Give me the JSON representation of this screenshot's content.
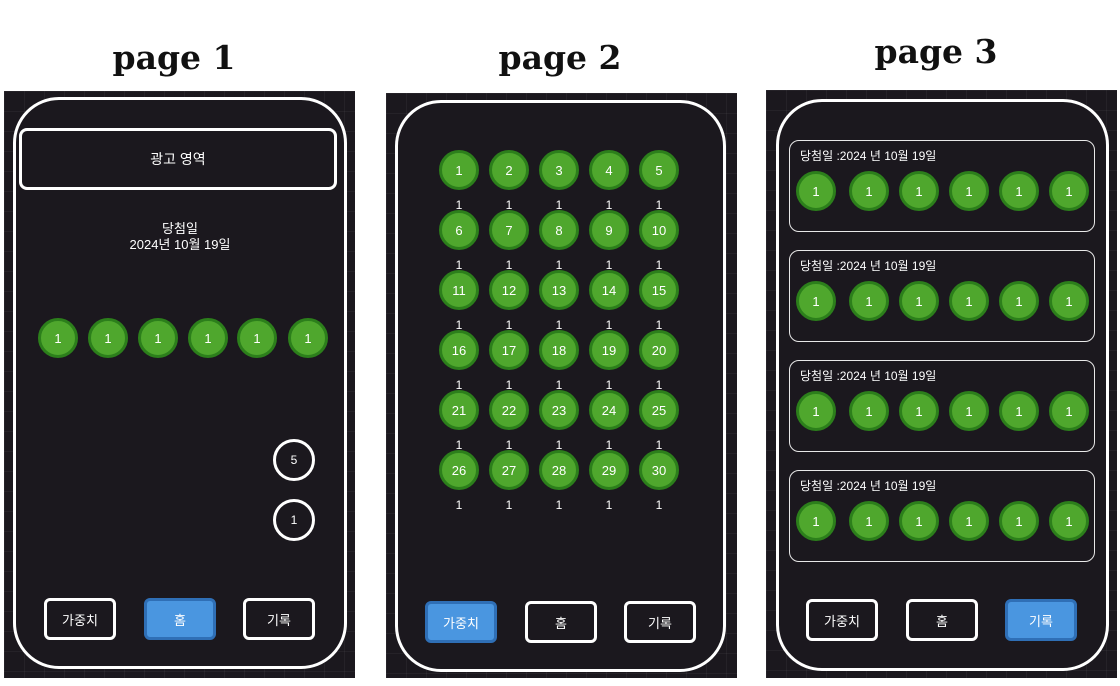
{
  "titles": [
    "page 1",
    "page 2",
    "page 3"
  ],
  "page1": {
    "ad_label": "광고 영역",
    "draw_label": "당첨일",
    "draw_date": "2024년 10월 19일",
    "balls": [
      "1",
      "1",
      "1",
      "1",
      "1",
      "1"
    ],
    "circle_top": "5",
    "circle_bottom": "1"
  },
  "page2": {
    "numbers": [
      "1",
      "2",
      "3",
      "4",
      "5",
      "6",
      "7",
      "8",
      "9",
      "10",
      "11",
      "12",
      "13",
      "14",
      "15",
      "16",
      "17",
      "18",
      "19",
      "20",
      "21",
      "22",
      "23",
      "24",
      "25",
      "26",
      "27",
      "28",
      "29",
      "30"
    ],
    "counts": [
      "1",
      "1",
      "1",
      "1",
      "1",
      "1",
      "1",
      "1",
      "1",
      "1",
      "1",
      "1",
      "1",
      "1",
      "1",
      "1",
      "1",
      "1",
      "1",
      "1",
      "1",
      "1",
      "1",
      "1",
      "1",
      "1",
      "1",
      "1",
      "1",
      "1"
    ]
  },
  "page3": {
    "records": [
      {
        "label": "당첨일 :2024 년 10월 19일",
        "balls": [
          "1",
          "1",
          "1",
          "1",
          "1",
          "1"
        ]
      },
      {
        "label": "당첨일 :2024 년 10월 19일",
        "balls": [
          "1",
          "1",
          "1",
          "1",
          "1",
          "1"
        ]
      },
      {
        "label": "당첨일 :2024 년 10월 19일",
        "balls": [
          "1",
          "1",
          "1",
          "1",
          "1",
          "1"
        ]
      },
      {
        "label": "당첨일 :2024 년 10월 19일",
        "balls": [
          "1",
          "1",
          "1",
          "1",
          "1",
          "1"
        ]
      }
    ]
  },
  "nav": {
    "weights": "가중치",
    "home": "홈",
    "history": "기록"
  },
  "colors": {
    "ball": "#4fa72d",
    "active_button": "#4a96e0",
    "background": "#1b181e"
  }
}
